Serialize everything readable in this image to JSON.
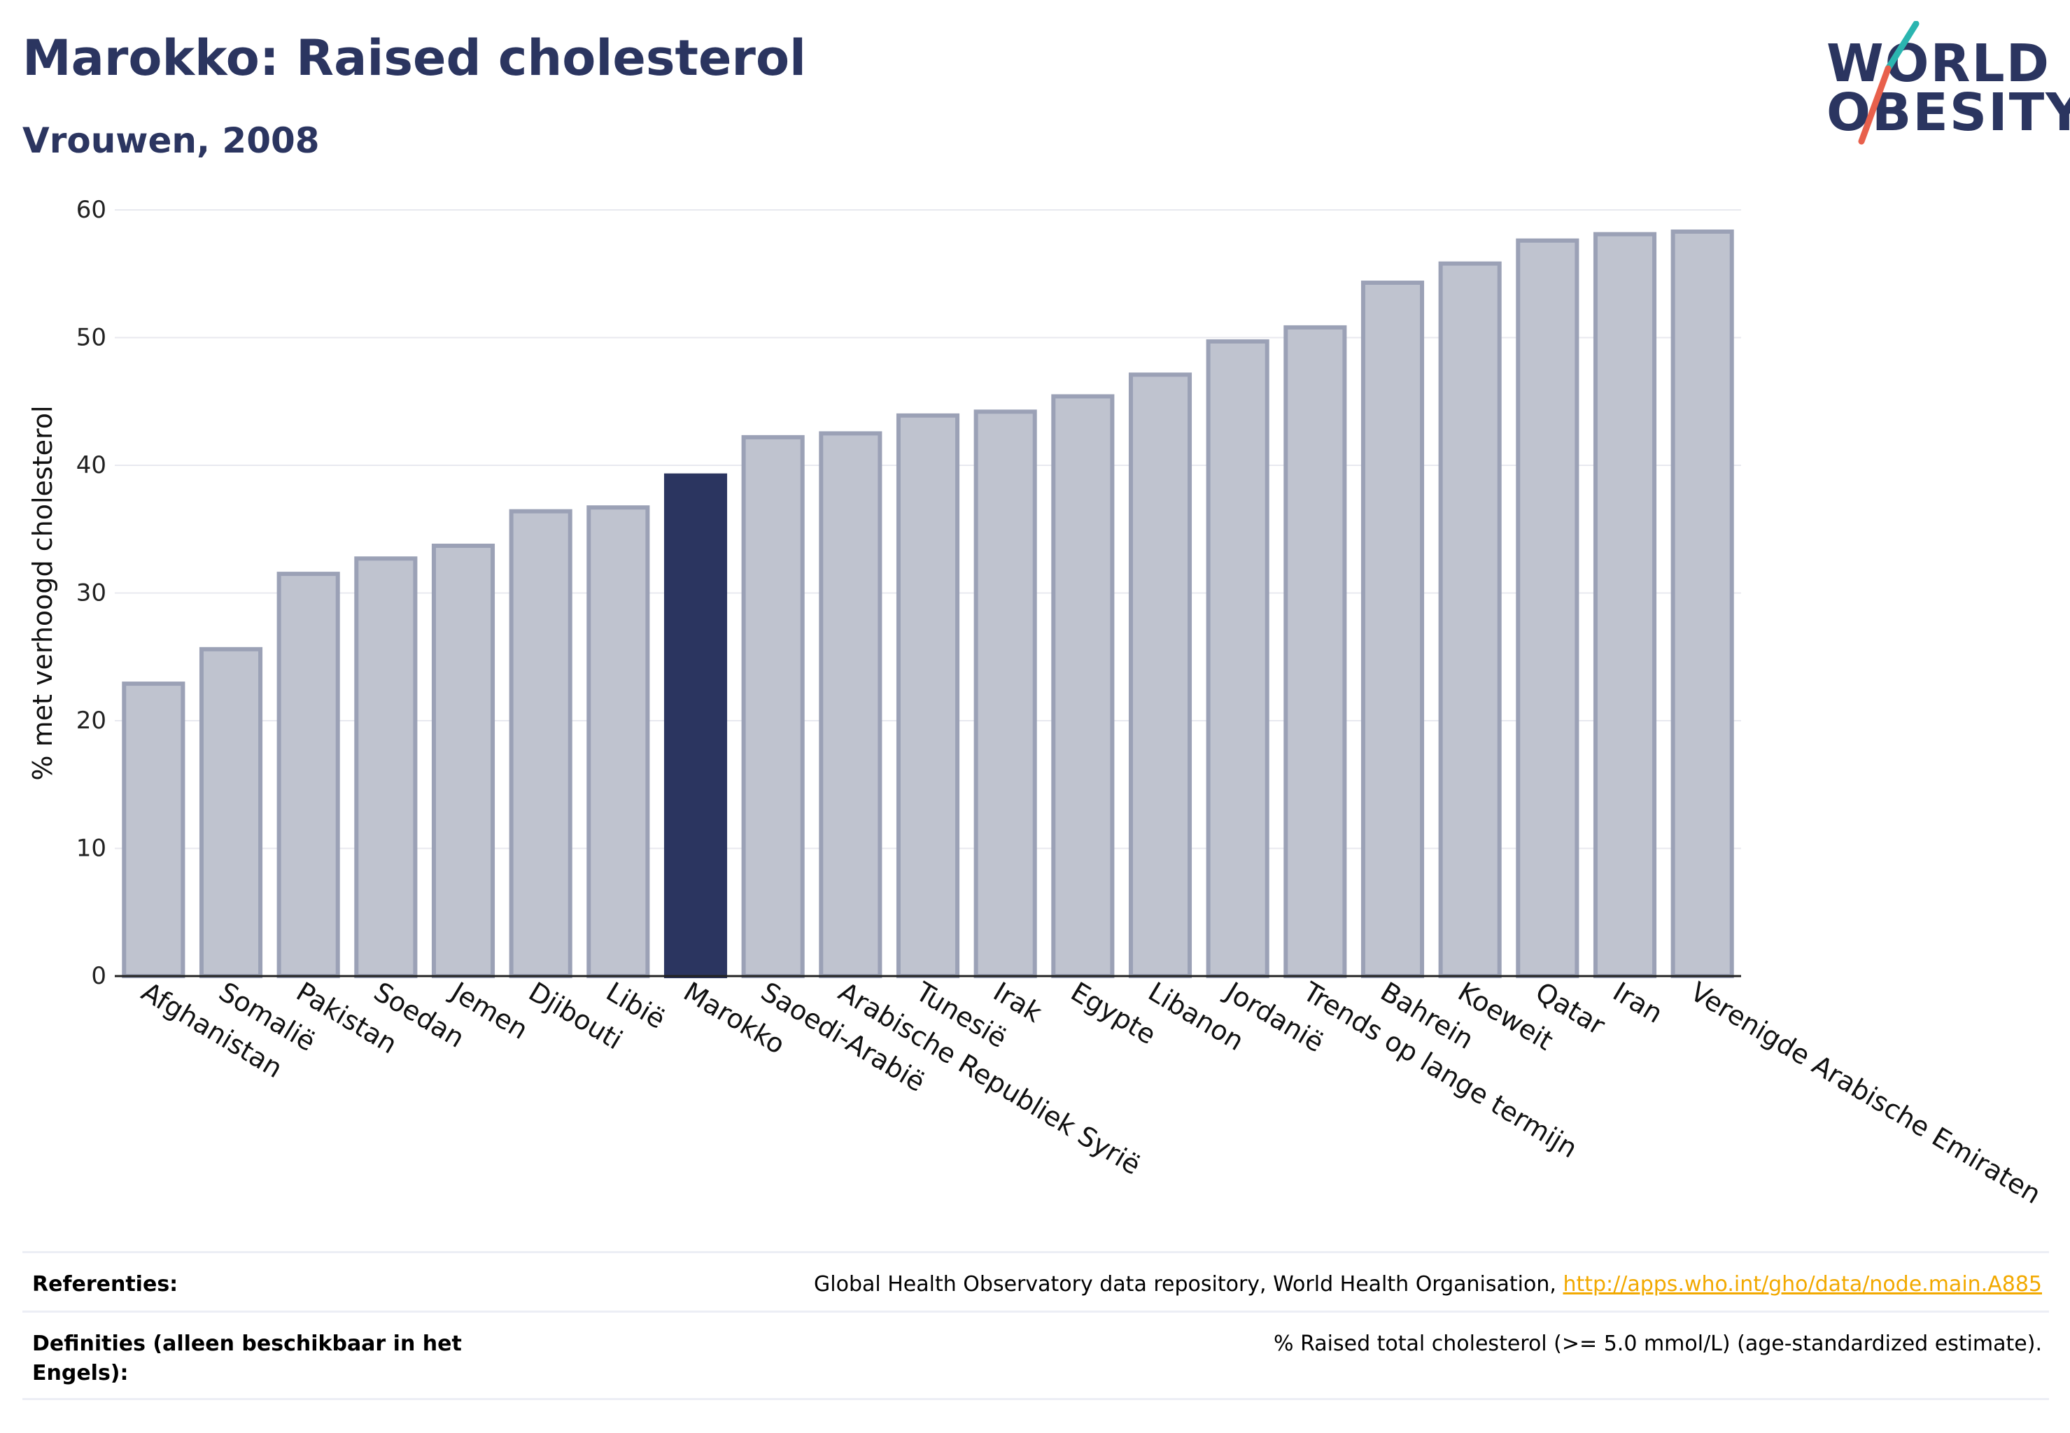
{
  "header": {
    "title": "Marokko: Raised cholesterol",
    "subtitle": "Vrouwen, 2008"
  },
  "logo": {
    "line1": "WORLD",
    "line2": "OBESITY",
    "colors": {
      "text": "#2b3560",
      "slash_top": "#2bb5b0",
      "slash_bottom": "#e8604c"
    }
  },
  "chart_data": {
    "type": "bar",
    "ylabel": "% met verhoogd cholesterol",
    "ylim": [
      0,
      60
    ],
    "yticks": [
      0,
      10,
      20,
      30,
      40,
      50,
      60
    ],
    "grid": true,
    "highlight": "Marokko",
    "colors": {
      "bar": "#bfc3cf",
      "bar_border": "#9ba1b6",
      "highlight": "#2b3560"
    },
    "categories": [
      "Afghanistan",
      "Somalië",
      "Pakistan",
      "Soedan",
      "Jemen",
      "Djibouti",
      "Libië",
      "Marokko",
      "Saoedi-Arabië",
      "Arabische Republiek Syrië",
      "Tunesië",
      "Irak",
      "Egypte",
      "Libanon",
      "Jordanië",
      "Trends op lange termijn",
      "Bahrein",
      "Koeweit",
      "Qatar",
      "Iran",
      "Verenigde Arabische Emiraten"
    ],
    "values": [
      22.9,
      25.6,
      31.5,
      32.7,
      33.7,
      36.4,
      36.7,
      39.2,
      42.2,
      42.5,
      43.9,
      44.2,
      45.4,
      47.1,
      49.7,
      50.8,
      54.3,
      55.8,
      57.6,
      58.1,
      58.3
    ]
  },
  "references": {
    "ref_label": "Referenties:",
    "ref_text": "Global Health Observatory data repository, World Health Organisation, ",
    "ref_link": "http://apps.who.int/gho/data/node.main.A885",
    "def_label": "Definities (alleen beschikbaar in het Engels):",
    "def_text": "% Raised total cholesterol (>= 5.0 mmol/L) (age-standardized estimate)."
  }
}
